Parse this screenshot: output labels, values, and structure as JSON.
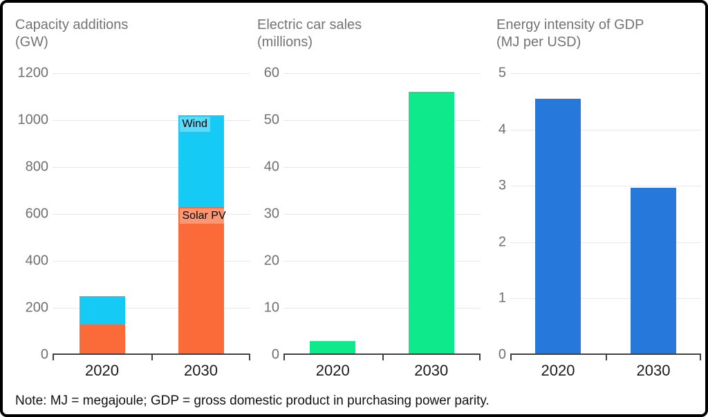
{
  "figure": {
    "note": "Note: MJ = megajoule; GDP = gross domestic product in purchasing power parity.",
    "background": "#ffffff",
    "border_color": "#000000",
    "grid_color": "#e7e7e7",
    "axis_color": "#404040",
    "title_color": "#737373",
    "ytick_color": "#6f6f6f",
    "xtick_color": "#1a1a1a"
  },
  "chart_data": [
    {
      "type": "bar",
      "stacked": true,
      "title": "Capacity additions",
      "unit": "(GW)",
      "categories": [
        "2020",
        "2030"
      ],
      "series": [
        {
          "name": "Solar PV",
          "color": "#fb6a39",
          "values": [
            130,
            630
          ]
        },
        {
          "name": "Wind",
          "color": "#15cbf6",
          "values": [
            120,
            390
          ]
        }
      ],
      "segment_labels": {
        "category_index": 1
      },
      "ylim": [
        0,
        1200
      ],
      "yticks": [
        0,
        200,
        400,
        600,
        800,
        1000,
        1200
      ],
      "grid": true,
      "legend": "labels-inside-2030-bar"
    },
    {
      "type": "bar",
      "stacked": false,
      "title": "Electric car sales",
      "unit": "(millions)",
      "categories": [
        "2020",
        "2030"
      ],
      "series": [
        {
          "name": "Electric car sales",
          "color": "#0de98b",
          "values": [
            3,
            56
          ]
        }
      ],
      "ylim": [
        0,
        60
      ],
      "yticks": [
        0,
        10,
        20,
        30,
        40,
        50,
        60
      ],
      "grid": true,
      "legend": "none"
    },
    {
      "type": "bar",
      "stacked": false,
      "title": "Energy intensity of GDP",
      "unit": "(MJ per USD)",
      "categories": [
        "2020",
        "2030"
      ],
      "series": [
        {
          "name": "Energy intensity of GDP",
          "color": "#2679db",
          "values": [
            4.55,
            2.97
          ]
        }
      ],
      "ylim": [
        0,
        5
      ],
      "yticks": [
        0,
        1,
        2,
        3,
        4,
        5
      ],
      "grid": true,
      "legend": "none"
    }
  ]
}
